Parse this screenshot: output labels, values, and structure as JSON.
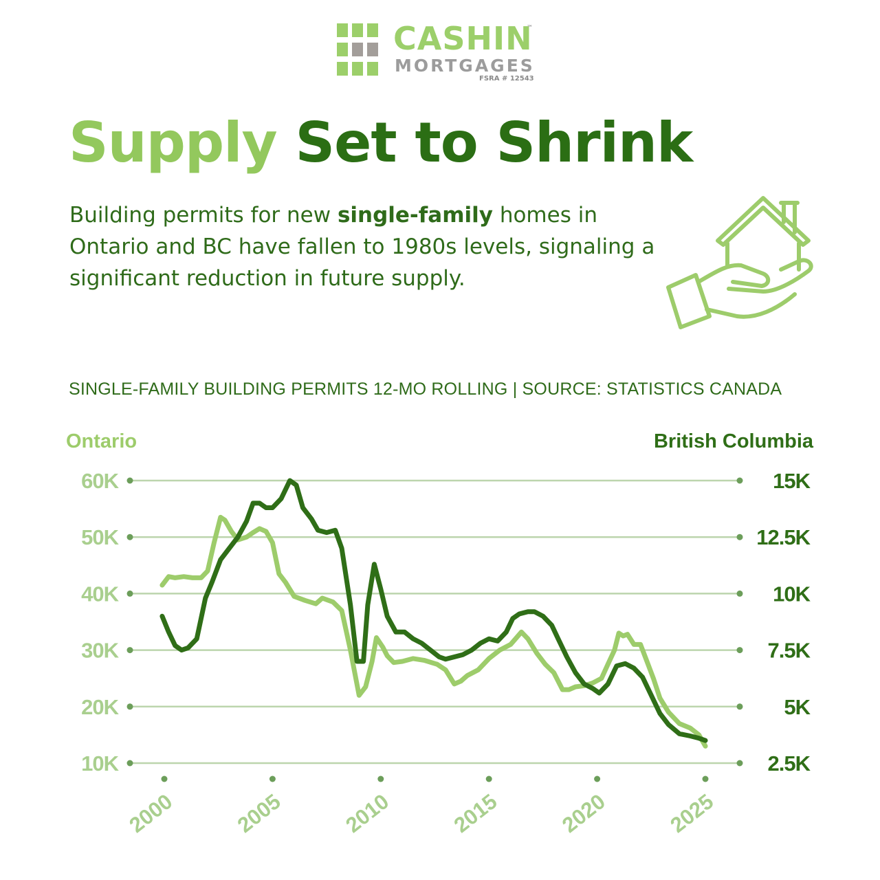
{
  "logo": {
    "name": "CASHIN",
    "tm": "™",
    "sub": "MORTGAGES",
    "fsra": "FSRA # 12543",
    "colors": {
      "light_green": "#9ccf6a",
      "gray": "#a39e9a"
    }
  },
  "headline": {
    "part1": "Supply",
    "part2": "Set to Shrink"
  },
  "intro": {
    "before": "Building permits for new ",
    "bold": "single-family",
    "after": " homes in Ontario and BC have fallen to 1980s levels, signaling a significant reduction in future supply."
  },
  "icon": "hand-holding-house-icon",
  "subtitle": "SINGLE-FAMILY BUILDING PERMITS 12-MO ROLLING | SOURCE: STATISTICS CANADA",
  "colors": {
    "ontario": "#9dcc6b",
    "bc": "#2f6e17",
    "grid": "#bcd5ad",
    "marker": "#6c9e5a"
  },
  "chart_data": {
    "type": "line",
    "left_axis_title": "Ontario",
    "right_axis_title": "British Columbia",
    "left_ylim": [
      10000,
      60000
    ],
    "left_ticks": [
      {
        "value": 60000,
        "label": "60K"
      },
      {
        "value": 50000,
        "label": "50K"
      },
      {
        "value": 40000,
        "label": "40K"
      },
      {
        "value": 30000,
        "label": "30K"
      },
      {
        "value": 20000,
        "label": "20K"
      },
      {
        "value": 10000,
        "label": "10K"
      }
    ],
    "right_ylim": [
      2500,
      15000
    ],
    "right_ticks": [
      {
        "value": 15000,
        "label": "15K"
      },
      {
        "value": 12500,
        "label": "12.5K"
      },
      {
        "value": 10000,
        "label": "10K"
      },
      {
        "value": 7500,
        "label": "7.5K"
      },
      {
        "value": 5000,
        "label": "5K"
      },
      {
        "value": 2500,
        "label": "2.5K"
      }
    ],
    "x_ticks": [
      "2000",
      "2005",
      "2010",
      "2015",
      "2020",
      "2025"
    ],
    "xlim": [
      2000,
      2025
    ],
    "grid": true,
    "series": [
      {
        "name": "Ontario",
        "axis": "left",
        "x": [
          1999.9,
          2000.2,
          2000.5,
          2000.9,
          2001.3,
          2001.7,
          2002.0,
          2002.3,
          2002.6,
          2002.8,
          2003.1,
          2003.4,
          2003.8,
          2004.1,
          2004.4,
          2004.7,
          2005.0,
          2005.3,
          2005.6,
          2006.0,
          2006.5,
          2007.0,
          2007.3,
          2007.8,
          2008.2,
          2008.6,
          2009.0,
          2009.3,
          2009.6,
          2009.8,
          2010.1,
          2010.3,
          2010.6,
          2011.0,
          2011.5,
          2012.0,
          2012.6,
          2013.0,
          2013.4,
          2013.7,
          2014.0,
          2014.5,
          2015.0,
          2015.5,
          2016.0,
          2016.5,
          2016.8,
          2017.2,
          2017.6,
          2018.0,
          2018.4,
          2018.7,
          2019.0,
          2019.4,
          2019.8,
          2020.2,
          2020.5,
          2020.8,
          2021.0,
          2021.2,
          2021.4,
          2021.7,
          2022.0,
          2022.3,
          2022.6,
          2022.9,
          2023.3,
          2023.8,
          2024.3,
          2024.7,
          2025.0
        ],
        "y": [
          41500,
          43000,
          42800,
          43000,
          42800,
          42800,
          44000,
          49000,
          53500,
          53000,
          51000,
          49500,
          50000,
          50800,
          51500,
          51000,
          49000,
          43500,
          42000,
          39500,
          38800,
          38200,
          39200,
          38500,
          37000,
          30000,
          22000,
          23500,
          28000,
          32200,
          30500,
          29000,
          27800,
          28000,
          28500,
          28200,
          27500,
          26500,
          24000,
          24500,
          25500,
          26500,
          28500,
          30000,
          31000,
          33200,
          32000,
          29500,
          27500,
          26000,
          23000,
          23000,
          23500,
          23700,
          24200,
          25000,
          27500,
          30000,
          33000,
          32500,
          32800,
          31000,
          31000,
          28000,
          25000,
          21500,
          19000,
          17000,
          16200,
          15000,
          13000
        ]
      },
      {
        "name": "British Columbia",
        "axis": "right",
        "x": [
          1999.9,
          2000.2,
          2000.5,
          2000.8,
          2001.1,
          2001.5,
          2001.9,
          2002.2,
          2002.6,
          2003.0,
          2003.4,
          2003.8,
          2004.1,
          2004.4,
          2004.7,
          2005.0,
          2005.4,
          2005.8,
          2006.1,
          2006.4,
          2006.8,
          2007.1,
          2007.5,
          2007.9,
          2008.2,
          2008.6,
          2008.9,
          2009.2,
          2009.4,
          2009.7,
          2010.0,
          2010.3,
          2010.7,
          2011.1,
          2011.5,
          2011.9,
          2012.3,
          2012.7,
          2013.0,
          2013.4,
          2013.8,
          2014.2,
          2014.6,
          2015.0,
          2015.4,
          2015.8,
          2016.1,
          2016.4,
          2016.8,
          2017.1,
          2017.5,
          2017.9,
          2018.2,
          2018.6,
          2019.0,
          2019.4,
          2019.8,
          2020.1,
          2020.5,
          2020.9,
          2021.3,
          2021.7,
          2022.1,
          2022.5,
          2022.9,
          2023.3,
          2023.8,
          2024.3,
          2024.7,
          2025.0
        ],
        "y": [
          9000,
          8300,
          7700,
          7500,
          7600,
          8000,
          9800,
          10500,
          11500,
          12000,
          12500,
          13200,
          14000,
          14000,
          13800,
          13800,
          14200,
          15000,
          14800,
          13800,
          13300,
          12800,
          12700,
          12800,
          12000,
          9500,
          7000,
          7000,
          9500,
          11300,
          10200,
          9000,
          8300,
          8300,
          8000,
          7800,
          7500,
          7200,
          7100,
          7200,
          7300,
          7500,
          7800,
          8000,
          7900,
          8300,
          8900,
          9100,
          9200,
          9200,
          9000,
          8600,
          8000,
          7200,
          6500,
          6000,
          5800,
          5600,
          6000,
          6800,
          6900,
          6700,
          6300,
          5500,
          4700,
          4200,
          3800,
          3700,
          3600,
          3500
        ]
      }
    ]
  }
}
